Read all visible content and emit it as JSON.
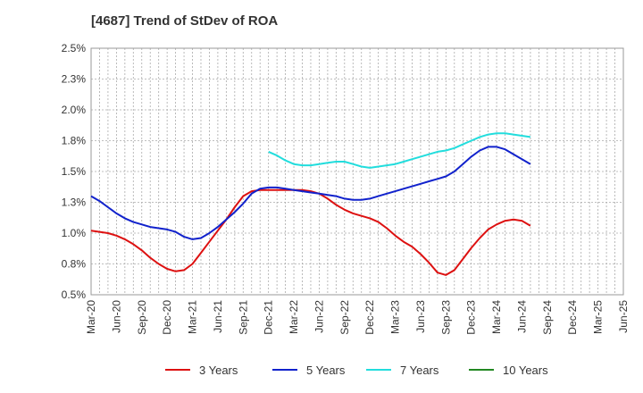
{
  "chart_data": {
    "type": "line",
    "title": "[4687]  Trend of StDev of ROA",
    "xlabel": "",
    "ylabel": "",
    "x_ticks": [
      "Mar-20",
      "Jun-20",
      "Sep-20",
      "Dec-20",
      "Mar-21",
      "Jun-21",
      "Sep-21",
      "Dec-21",
      "Mar-22",
      "Jun-22",
      "Sep-22",
      "Dec-22",
      "Mar-23",
      "Jun-23",
      "Sep-23",
      "Dec-23",
      "Mar-24",
      "Jun-24",
      "Sep-24",
      "Dec-24",
      "Mar-25",
      "Jun-25"
    ],
    "y_ticks": [
      "0.5%",
      "0.8%",
      "1.0%",
      "1.3%",
      "1.5%",
      "1.8%",
      "2.0%",
      "2.3%",
      "2.5%"
    ],
    "ylim": [
      0.5,
      2.5
    ],
    "grid": true,
    "legend_position": "bottom",
    "series": [
      {
        "name": "3 Years",
        "color": "#dd1111",
        "start_index": 0,
        "values": [
          1.02,
          1.01,
          1.0,
          0.98,
          0.95,
          0.91,
          0.86,
          0.8,
          0.75,
          0.71,
          0.69,
          0.7,
          0.75,
          0.84,
          0.93,
          1.02,
          1.11,
          1.21,
          1.3,
          1.34,
          1.35,
          1.35,
          1.35,
          1.35,
          1.35,
          1.35,
          1.34,
          1.32,
          1.28,
          1.23,
          1.19,
          1.16,
          1.14,
          1.12,
          1.09,
          1.04,
          0.98,
          0.93,
          0.89,
          0.83,
          0.76,
          0.68,
          0.66,
          0.7,
          0.79,
          0.88,
          0.96,
          1.03,
          1.07,
          1.1,
          1.11,
          1.1,
          1.06
        ]
      },
      {
        "name": "5 Years",
        "color": "#1122cc",
        "start_index": 0,
        "values": [
          1.3,
          1.26,
          1.21,
          1.16,
          1.12,
          1.09,
          1.07,
          1.05,
          1.04,
          1.03,
          1.01,
          0.97,
          0.95,
          0.96,
          1.0,
          1.05,
          1.11,
          1.17,
          1.24,
          1.32,
          1.36,
          1.37,
          1.37,
          1.36,
          1.35,
          1.34,
          1.33,
          1.32,
          1.31,
          1.3,
          1.28,
          1.27,
          1.27,
          1.28,
          1.3,
          1.32,
          1.34,
          1.36,
          1.38,
          1.4,
          1.42,
          1.44,
          1.46,
          1.5,
          1.56,
          1.62,
          1.67,
          1.7,
          1.7,
          1.68,
          1.64,
          1.6,
          1.56
        ]
      },
      {
        "name": "7 Years",
        "color": "#22dddd",
        "start_index": 21,
        "values": [
          1.66,
          1.63,
          1.59,
          1.56,
          1.55,
          1.55,
          1.56,
          1.57,
          1.58,
          1.58,
          1.56,
          1.54,
          1.53,
          1.54,
          1.55,
          1.56,
          1.58,
          1.6,
          1.62,
          1.64,
          1.66,
          1.67,
          1.69,
          1.72,
          1.75,
          1.78,
          1.8,
          1.81,
          1.81,
          1.8,
          1.79,
          1.78
        ]
      },
      {
        "name": "10 Years",
        "color": "#228822",
        "start_index": 0,
        "values": []
      }
    ]
  }
}
